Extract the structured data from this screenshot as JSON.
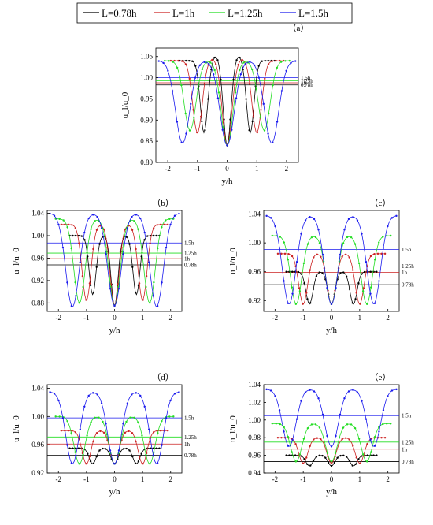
{
  "legend": [
    {
      "label": "L=0.78h",
      "color": "#000000"
    },
    {
      "label": "L=1h",
      "color": "#cc2222"
    },
    {
      "label": "L=1.25h",
      "color": "#22dd22"
    },
    {
      "label": "L=1.5h",
      "color": "#1a1aee"
    }
  ],
  "chart_data": [
    {
      "id": "a",
      "panel_label": "（a）",
      "type": "line",
      "xlabel": "y/h",
      "ylabel": "u_l/u_0",
      "xlim": [
        -2.4,
        2.4
      ],
      "ylim": [
        0.8,
        1.07
      ],
      "xticks": [
        -2,
        -1,
        0,
        1,
        2
      ],
      "yticks": [
        0.8,
        0.85,
        0.9,
        0.95,
        1.0,
        1.05
      ],
      "ref_lines": [
        {
          "label": "1.5h",
          "y": 1.0,
          "color": "#1a1aee"
        },
        {
          "label": "1.25h",
          "y": 0.993,
          "color": "#22dd22"
        },
        {
          "label": "1h",
          "y": 0.988,
          "color": "#cc2222"
        },
        {
          "label": "0.78h",
          "y": 0.983,
          "color": "#000000"
        }
      ],
      "series": [
        {
          "name": "L=0.78h",
          "color": "#000000",
          "L": 0.78,
          "xmax": 1.6,
          "base": 1.04,
          "peak": 1.052,
          "min_center": 0.84,
          "min_side": 0.87
        },
        {
          "name": "L=1h",
          "color": "#cc2222",
          "L": 1.0,
          "xmax": 1.9,
          "base": 1.04,
          "peak": 1.045,
          "min_center": 0.84,
          "min_side": 0.87
        },
        {
          "name": "L=1.25h",
          "color": "#22dd22",
          "L": 1.25,
          "xmax": 2.1,
          "base": 1.04,
          "peak": 1.04,
          "min_center": 0.84,
          "min_side": 0.875
        },
        {
          "name": "L=1.5h",
          "color": "#1a1aee",
          "L": 1.5,
          "xmax": 2.3,
          "base": 1.04,
          "peak": 1.04,
          "min_center": 0.84,
          "min_side": 0.845
        }
      ]
    },
    {
      "id": "b",
      "panel_label": "（b）",
      "type": "line",
      "xlabel": "y/h",
      "ylabel": "u_l/u_0",
      "xlim": [
        -2.4,
        2.4
      ],
      "ylim": [
        0.865,
        1.045
      ],
      "xticks": [
        -2,
        -1,
        0,
        1,
        2
      ],
      "yticks": [
        0.88,
        0.92,
        0.96,
        1.0,
        1.04
      ],
      "ref_lines": [
        {
          "label": "1.5h",
          "y": 0.987,
          "color": "#1a1aee"
        },
        {
          "label": "1.25h",
          "y": 0.969,
          "color": "#22dd22"
        },
        {
          "label": "1h",
          "y": 0.959,
          "color": "#cc2222"
        },
        {
          "label": "0.78h",
          "y": 0.948,
          "color": "#000000"
        }
      ],
      "series": [
        {
          "name": "L=0.78h",
          "color": "#000000",
          "L": 0.78,
          "xmax": 1.6,
          "base": 1.0,
          "peak": 1.0,
          "min_center": 0.875,
          "min_side": 0.895
        },
        {
          "name": "L=1h",
          "color": "#cc2222",
          "L": 1.0,
          "xmax": 1.9,
          "base": 1.02,
          "peak": 1.02,
          "min_center": 0.875,
          "min_side": 0.885
        },
        {
          "name": "L=1.25h",
          "color": "#22dd22",
          "L": 1.25,
          "xmax": 2.1,
          "base": 1.03,
          "peak": 1.03,
          "min_center": 0.875,
          "min_side": 0.88
        },
        {
          "name": "L=1.5h",
          "color": "#1a1aee",
          "L": 1.5,
          "xmax": 2.3,
          "base": 1.04,
          "peak": 1.04,
          "min_center": 0.875,
          "min_side": 0.873
        }
      ]
    },
    {
      "id": "c",
      "panel_label": "（c）",
      "type": "line",
      "xlabel": "y/h",
      "ylabel": "u_l/u_0",
      "xlim": [
        -2.4,
        2.4
      ],
      "ylim": [
        0.905,
        1.045
      ],
      "xticks": [
        -2,
        -1,
        0,
        1,
        2
      ],
      "yticks": [
        0.92,
        0.96,
        1.0,
        1.04
      ],
      "ref_lines": [
        {
          "label": "1.5h",
          "y": 0.991,
          "color": "#1a1aee"
        },
        {
          "label": "1.25h",
          "y": 0.968,
          "color": "#22dd22"
        },
        {
          "label": "1h",
          "y": 0.959,
          "color": "#cc2222"
        },
        {
          "label": "0.78h",
          "y": 0.942,
          "color": "#000000"
        }
      ],
      "series": [
        {
          "name": "L=0.78h",
          "color": "#000000",
          "L": 0.78,
          "xmax": 1.6,
          "base": 0.96,
          "peak": 0.96,
          "min_center": 0.915,
          "min_side": 0.915
        },
        {
          "name": "L=1h",
          "color": "#cc2222",
          "L": 1.0,
          "xmax": 1.9,
          "base": 0.985,
          "peak": 0.985,
          "min_center": 0.915,
          "min_side": 0.915
        },
        {
          "name": "L=1.25h",
          "color": "#22dd22",
          "L": 1.25,
          "xmax": 2.1,
          "base": 1.01,
          "peak": 1.01,
          "min_center": 0.915,
          "min_side": 0.915
        },
        {
          "name": "L=1.5h",
          "color": "#1a1aee",
          "L": 1.5,
          "xmax": 2.3,
          "base": 1.038,
          "peak": 1.038,
          "min_center": 0.915,
          "min_side": 0.915
        }
      ]
    },
    {
      "id": "d",
      "panel_label": "（d）",
      "type": "line",
      "xlabel": "y/h",
      "ylabel": "u_l/u_0",
      "xlim": [
        -2.4,
        2.4
      ],
      "ylim": [
        0.92,
        1.045
      ],
      "xticks": [
        -2,
        -1,
        0,
        1,
        2
      ],
      "yticks": [
        0.92,
        0.96,
        1.0,
        1.04
      ],
      "ref_lines": [
        {
          "label": "1.5h",
          "y": 0.998,
          "color": "#1a1aee"
        },
        {
          "label": "1.25h",
          "y": 0.971,
          "color": "#22dd22"
        },
        {
          "label": "1h",
          "y": 0.961,
          "color": "#cc2222"
        },
        {
          "label": "0.78h",
          "y": 0.945,
          "color": "#000000"
        }
      ],
      "series": [
        {
          "name": "L=0.78h",
          "color": "#000000",
          "L": 0.78,
          "xmax": 1.6,
          "base": 0.955,
          "peak": 0.955,
          "min_center": 0.933,
          "min_side": 0.933
        },
        {
          "name": "L=1h",
          "color": "#cc2222",
          "L": 1.0,
          "xmax": 1.9,
          "base": 0.98,
          "peak": 0.98,
          "min_center": 0.933,
          "min_side": 0.933
        },
        {
          "name": "L=1.25h",
          "color": "#22dd22",
          "L": 1.25,
          "xmax": 2.1,
          "base": 1.0,
          "peak": 1.0,
          "min_center": 0.933,
          "min_side": 0.933
        },
        {
          "name": "L=1.5h",
          "color": "#1a1aee",
          "L": 1.5,
          "xmax": 2.3,
          "base": 1.035,
          "peak": 1.035,
          "min_center": 0.933,
          "min_side": 0.933
        }
      ]
    },
    {
      "id": "e",
      "panel_label": "（e）",
      "type": "line",
      "xlabel": "y/h",
      "ylabel": "u_l/u_0",
      "xlim": [
        -2.4,
        2.4
      ],
      "ylim": [
        0.94,
        1.04
      ],
      "xticks": [
        -2,
        -1,
        0,
        1,
        2
      ],
      "yticks": [
        0.94,
        0.96,
        0.98,
        1.0,
        1.02,
        1.04
      ],
      "ref_lines": [
        {
          "label": "1.5h",
          "y": 1.005,
          "color": "#1a1aee"
        },
        {
          "label": "1.25h",
          "y": 0.975,
          "color": "#22dd22"
        },
        {
          "label": "1h",
          "y": 0.967,
          "color": "#cc2222"
        },
        {
          "label": "0.78h",
          "y": 0.953,
          "color": "#000000"
        }
      ],
      "series": [
        {
          "name": "L=0.78h",
          "color": "#000000",
          "L": 0.78,
          "xmax": 1.6,
          "base": 0.96,
          "peak": 0.96,
          "min_center": 0.948,
          "min_side": 0.948
        },
        {
          "name": "L=1h",
          "color": "#cc2222",
          "L": 1.0,
          "xmax": 1.9,
          "base": 0.98,
          "peak": 0.98,
          "min_center": 0.951,
          "min_side": 0.951
        },
        {
          "name": "L=1.25h",
          "color": "#22dd22",
          "L": 1.25,
          "xmax": 2.1,
          "base": 0.996,
          "peak": 0.996,
          "min_center": 0.953,
          "min_side": 0.953
        },
        {
          "name": "L=1.5h",
          "color": "#1a1aee",
          "L": 1.5,
          "xmax": 2.3,
          "base": 1.035,
          "peak": 1.035,
          "min_center": 0.97,
          "min_side": 0.97
        }
      ]
    }
  ]
}
